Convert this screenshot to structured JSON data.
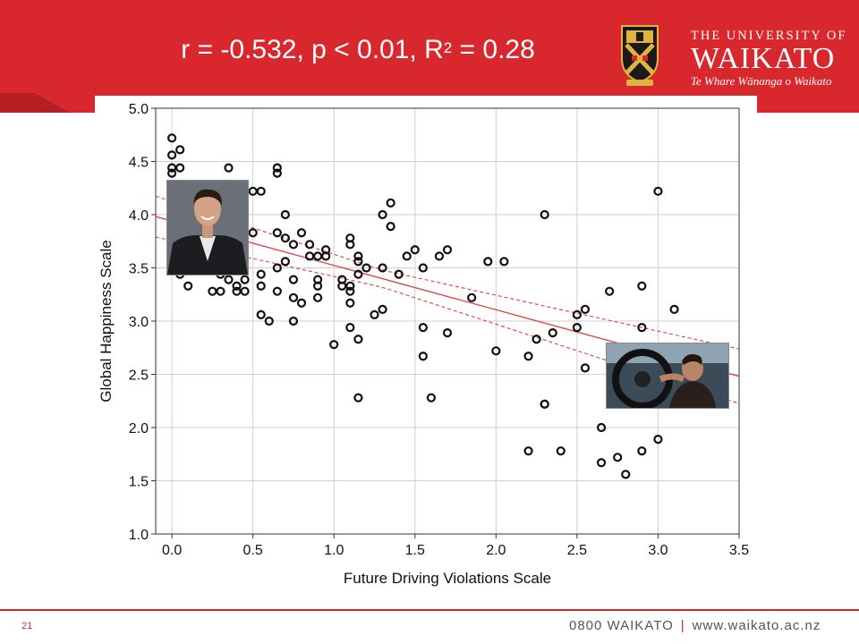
{
  "slide": {
    "title_prefix": "r = -0.532, p < 0.01, R",
    "title_sup": "2",
    "title_suffix": " = 0.28",
    "page_number": "21",
    "phone": "0800 WAIKATO",
    "separator": "|",
    "website": "www.waikato.ac.nz",
    "colors": {
      "brand_red": "#d9272e",
      "dark_red": "#b81f25",
      "white": "#ffffff"
    }
  },
  "logo": {
    "line1": "THE UNIVERSITY OF",
    "line2": "WAIKATO",
    "line3": "Te Whare Wānanga o Waikato",
    "crest_icon": "university-crest-icon"
  },
  "photos": [
    {
      "name": "smiling-man-in-suit-photo"
    },
    {
      "name": "driver-at-steering-wheel-photo"
    }
  ],
  "chart_data": {
    "type": "scatter",
    "title": "",
    "xlabel": "Future Driving Violations Scale",
    "ylabel": "Global Happiness Scale",
    "xlim": [
      -0.1,
      3.5
    ],
    "ylim": [
      1.0,
      5.0
    ],
    "xticks": [
      "0.0",
      "0.5",
      "1.0",
      "1.5",
      "2.0",
      "2.5",
      "3.0",
      "3.5"
    ],
    "yticks": [
      "1.0",
      "1.5",
      "2.0",
      "2.5",
      "3.0",
      "3.5",
      "4.0",
      "4.5",
      "5.0"
    ],
    "xtick_values": [
      0.0,
      0.5,
      1.0,
      1.5,
      2.0,
      2.5,
      3.0,
      3.5
    ],
    "ytick_values": [
      1.0,
      1.5,
      2.0,
      2.5,
      3.0,
      3.5,
      4.0,
      4.5,
      5.0
    ],
    "grid": true,
    "points": [
      [
        0.0,
        4.72
      ],
      [
        0.0,
        4.56
      ],
      [
        0.0,
        4.44
      ],
      [
        0.0,
        4.39
      ],
      [
        0.05,
        4.61
      ],
      [
        0.05,
        4.44
      ],
      [
        0.05,
        3.44
      ],
      [
        0.1,
        3.33
      ],
      [
        0.25,
        3.28
      ],
      [
        0.3,
        3.28
      ],
      [
        0.3,
        3.44
      ],
      [
        0.35,
        4.44
      ],
      [
        0.35,
        3.39
      ],
      [
        0.4,
        3.33
      ],
      [
        0.4,
        3.28
      ],
      [
        0.45,
        3.28
      ],
      [
        0.45,
        3.39
      ],
      [
        0.5,
        3.83
      ],
      [
        0.5,
        4.22
      ],
      [
        0.55,
        4.22
      ],
      [
        0.55,
        3.44
      ],
      [
        0.55,
        3.33
      ],
      [
        0.55,
        3.06
      ],
      [
        0.6,
        3.0
      ],
      [
        0.65,
        4.44
      ],
      [
        0.65,
        4.39
      ],
      [
        0.65,
        3.83
      ],
      [
        0.65,
        3.5
      ],
      [
        0.65,
        3.28
      ],
      [
        0.7,
        4.0
      ],
      [
        0.7,
        3.78
      ],
      [
        0.7,
        3.56
      ],
      [
        0.75,
        3.72
      ],
      [
        0.75,
        3.39
      ],
      [
        0.75,
        3.22
      ],
      [
        0.75,
        3.0
      ],
      [
        0.8,
        3.83
      ],
      [
        0.8,
        3.17
      ],
      [
        0.85,
        3.72
      ],
      [
        0.85,
        3.61
      ],
      [
        0.9,
        3.61
      ],
      [
        0.9,
        3.39
      ],
      [
        0.9,
        3.33
      ],
      [
        0.9,
        3.22
      ],
      [
        0.95,
        3.67
      ],
      [
        0.95,
        3.61
      ],
      [
        1.0,
        2.78
      ],
      [
        1.05,
        3.39
      ],
      [
        1.05,
        3.33
      ],
      [
        1.1,
        3.78
      ],
      [
        1.1,
        3.72
      ],
      [
        1.1,
        3.33
      ],
      [
        1.1,
        3.28
      ],
      [
        1.1,
        3.17
      ],
      [
        1.1,
        2.94
      ],
      [
        1.15,
        3.61
      ],
      [
        1.15,
        3.56
      ],
      [
        1.15,
        3.44
      ],
      [
        1.15,
        2.83
      ],
      [
        1.15,
        2.28
      ],
      [
        1.2,
        3.5
      ],
      [
        1.25,
        3.06
      ],
      [
        1.3,
        4.0
      ],
      [
        1.3,
        3.5
      ],
      [
        1.3,
        3.11
      ],
      [
        1.35,
        4.11
      ],
      [
        1.35,
        3.89
      ],
      [
        1.4,
        3.44
      ],
      [
        1.45,
        3.61
      ],
      [
        1.5,
        3.67
      ],
      [
        1.55,
        3.5
      ],
      [
        1.55,
        2.94
      ],
      [
        1.55,
        2.67
      ],
      [
        1.6,
        2.28
      ],
      [
        1.65,
        3.61
      ],
      [
        1.7,
        3.67
      ],
      [
        1.7,
        2.89
      ],
      [
        1.85,
        3.22
      ],
      [
        1.95,
        3.56
      ],
      [
        2.0,
        2.72
      ],
      [
        2.05,
        3.56
      ],
      [
        2.2,
        2.67
      ],
      [
        2.2,
        1.78
      ],
      [
        2.25,
        2.83
      ],
      [
        2.3,
        4.0
      ],
      [
        2.3,
        2.22
      ],
      [
        2.3,
        2.22
      ],
      [
        2.35,
        2.89
      ],
      [
        2.4,
        1.78
      ],
      [
        2.5,
        3.06
      ],
      [
        2.5,
        2.94
      ],
      [
        2.55,
        3.11
      ],
      [
        2.55,
        2.56
      ],
      [
        2.65,
        2.0
      ],
      [
        2.65,
        1.67
      ],
      [
        2.7,
        3.28
      ],
      [
        2.75,
        1.72
      ],
      [
        2.8,
        1.56
      ],
      [
        2.9,
        3.33
      ],
      [
        2.9,
        2.94
      ],
      [
        2.9,
        1.78
      ],
      [
        3.0,
        4.22
      ],
      [
        3.0,
        1.89
      ],
      [
        3.1,
        3.11
      ]
    ],
    "regression": {
      "intercept": 3.94,
      "slope": -0.4167,
      "ci_offset": 0.08,
      "color": "#e33b3b"
    },
    "marker_color": "#111111"
  }
}
